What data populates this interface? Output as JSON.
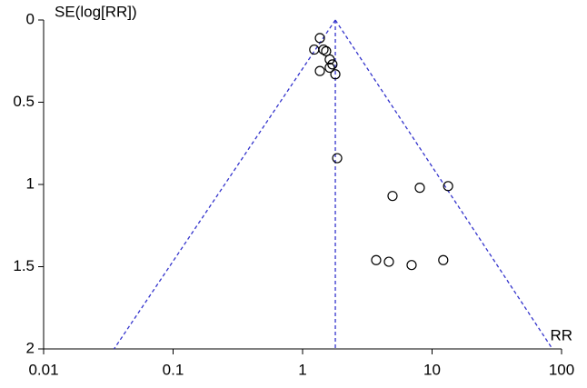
{
  "chart_data": {
    "type": "scatter",
    "y_label": "SE(log[RR])",
    "x_label": "RR",
    "x": [
      1.36,
      1.23,
      1.45,
      1.52,
      1.62,
      1.7,
      1.62,
      1.36,
      1.79,
      1.85,
      8.04,
      13.3,
      4.95,
      3.7,
      4.64,
      6.95,
      12.2
    ],
    "values": [
      0.11,
      0.18,
      0.18,
      0.19,
      0.24,
      0.27,
      0.29,
      0.31,
      0.33,
      0.84,
      1.02,
      1.01,
      1.07,
      1.46,
      1.47,
      1.49,
      1.46
    ],
    "color": "#000000",
    "xlim": [
      0.01,
      100
    ],
    "xticks": [
      0.01,
      0.1,
      1,
      10,
      100
    ],
    "x_log": true,
    "ylim": [
      0,
      2
    ],
    "yticks": [
      0,
      0.5,
      1,
      1.5,
      2
    ],
    "y_inverted": true,
    "funnel": {
      "center": 1.79,
      "bottom_x": [
        0.035,
        85
      ],
      "color": "#3333cc"
    },
    "grid": false
  }
}
